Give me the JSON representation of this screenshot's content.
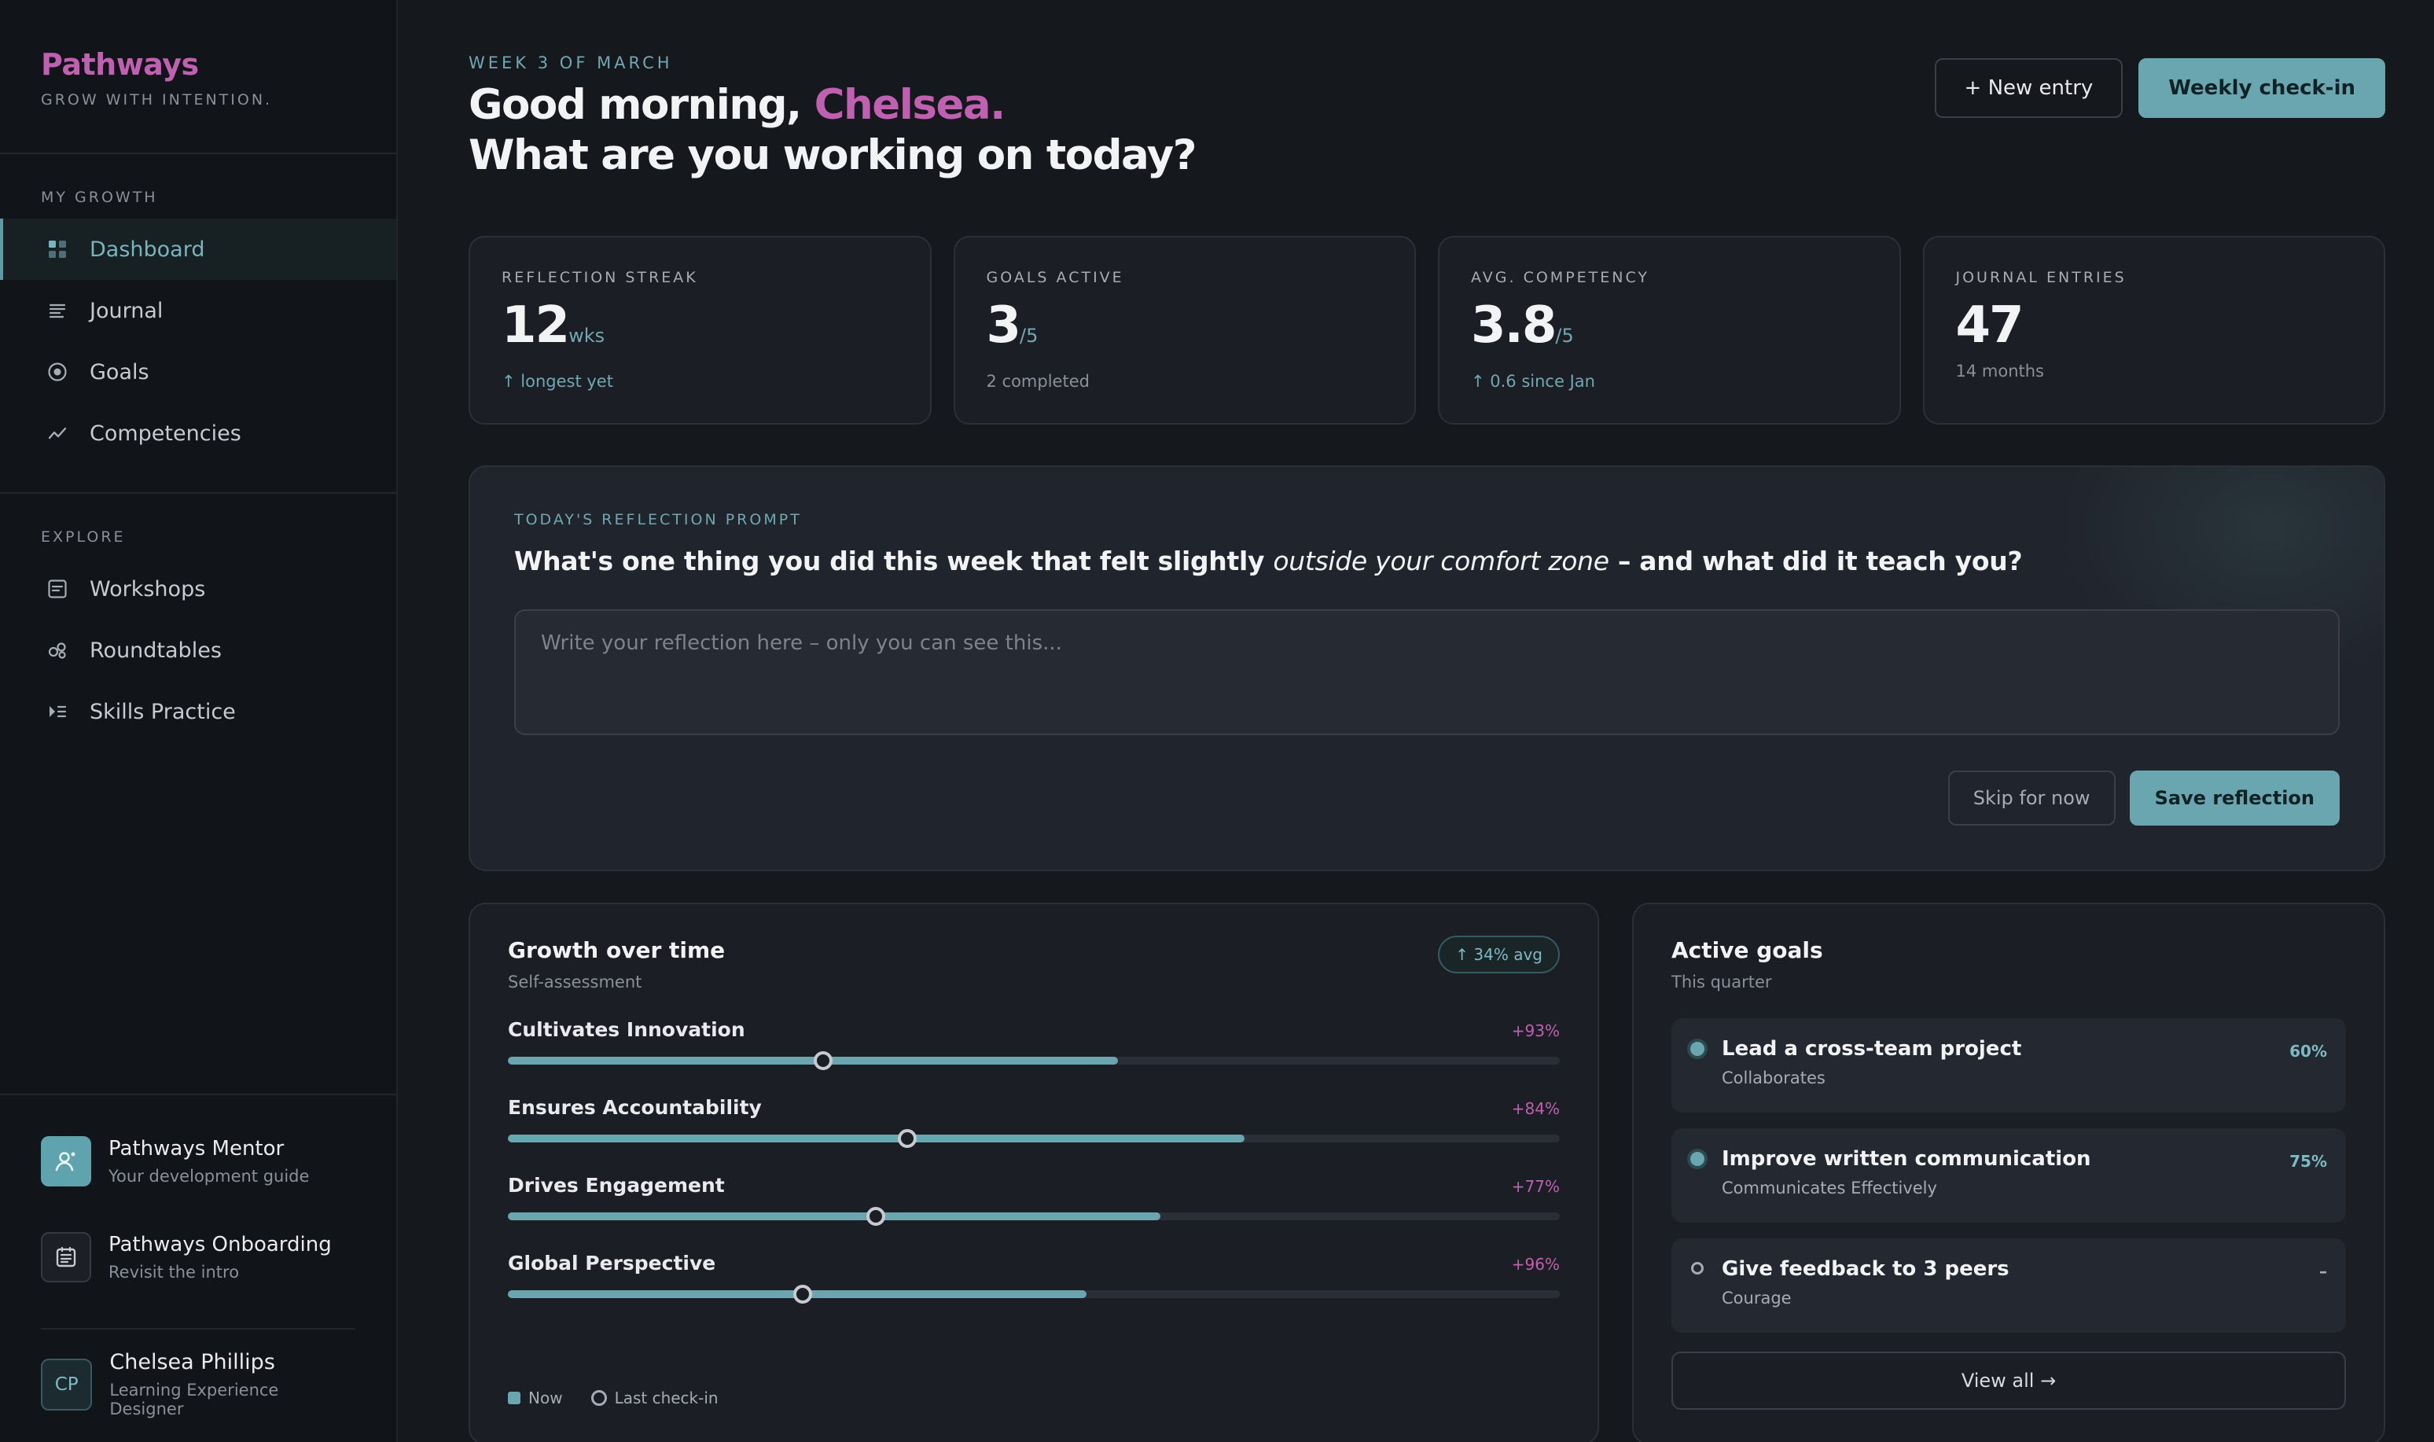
{
  "brand": {
    "name": "Pathways",
    "tagline": "GROW WITH INTENTION."
  },
  "nav": {
    "my_growth_heading": "MY GROWTH",
    "my_growth": [
      {
        "label": "Dashboard",
        "icon": "grid-icon",
        "active": true
      },
      {
        "label": "Journal",
        "icon": "lines-icon"
      },
      {
        "label": "Goals",
        "icon": "target-icon"
      },
      {
        "label": "Competencies",
        "icon": "trend-icon"
      }
    ],
    "explore_heading": "EXPLORE",
    "explore": [
      {
        "label": "Workshops",
        "icon": "workshop-icon"
      },
      {
        "label": "Roundtables",
        "icon": "roundtable-icon"
      },
      {
        "label": "Skills Practice",
        "icon": "practice-icon"
      }
    ]
  },
  "sidebar_cards": {
    "mentor": {
      "title": "Pathways Mentor",
      "subtitle": "Your development guide"
    },
    "onboarding": {
      "title": "Pathways Onboarding",
      "subtitle": "Revisit the intro"
    }
  },
  "user": {
    "initials": "CP",
    "name": "Chelsea Phillips",
    "role": "Learning Experience Designer"
  },
  "header": {
    "eyebrow": "WEEK 3 OF MARCH",
    "greeting": "Good morning,",
    "name": "Chelsea.",
    "question": "What are you working on today?",
    "new_entry": "+ New entry",
    "weekly_checkin": "Weekly check-in"
  },
  "stats": [
    {
      "label": "REFLECTION STREAK",
      "value": "12",
      "unit": "wks",
      "sub": "↑ longest yet",
      "sub_up": true
    },
    {
      "label": "GOALS ACTIVE",
      "value": "3",
      "unit": "/5",
      "sub": "2 completed",
      "sub_up": false
    },
    {
      "label": "AVG. COMPETENCY",
      "value": "3.8",
      "unit": "/5",
      "sub": "↑ 0.6 since Jan",
      "sub_up": true
    },
    {
      "label": "JOURNAL ENTRIES",
      "value": "47",
      "unit": "",
      "sub": "14 months",
      "sub_up": false
    }
  ],
  "prompt": {
    "label": "TODAY'S REFLECTION PROMPT",
    "question_start": "What's one thing you did this week that felt slightly ",
    "question_emphasis": "outside your comfort zone",
    "question_end": " – and what did it teach you?",
    "placeholder": "Write your reflection here – only you can see this...",
    "skip": "Skip for now",
    "save": "Save reflection"
  },
  "growth": {
    "title": "Growth over time",
    "subtitle": "Self-assessment",
    "badge": "↑ 34% avg",
    "competencies": [
      {
        "name": "Cultivates Innovation",
        "delta": "+93%",
        "now": 0.58,
        "last": 0.3
      },
      {
        "name": "Ensures Accountability",
        "delta": "+84%",
        "now": 0.7,
        "last": 0.38
      },
      {
        "name": "Drives Engagement",
        "delta": "+77%",
        "now": 0.62,
        "last": 0.35
      },
      {
        "name": "Global Perspective",
        "delta": "+96%",
        "now": 0.55,
        "last": 0.28
      }
    ],
    "legend_now": "Now",
    "legend_last": "Last check-in"
  },
  "goals": {
    "title": "Active goals",
    "subtitle": "This quarter",
    "items": [
      {
        "title": "Lead a cross-team project",
        "sub": "Collaborates",
        "pct": "60%",
        "active": true
      },
      {
        "title": "Improve written communication",
        "sub": "Communicates Effectively",
        "pct": "75%",
        "active": true
      },
      {
        "title": "Give feedback to 3 peers",
        "sub": "Courage",
        "pct": "–",
        "active": false
      }
    ],
    "view_all": "View all →"
  },
  "colors": {
    "accent": "#69a6b0",
    "brand": "#c060b0",
    "background": "#15181d"
  }
}
